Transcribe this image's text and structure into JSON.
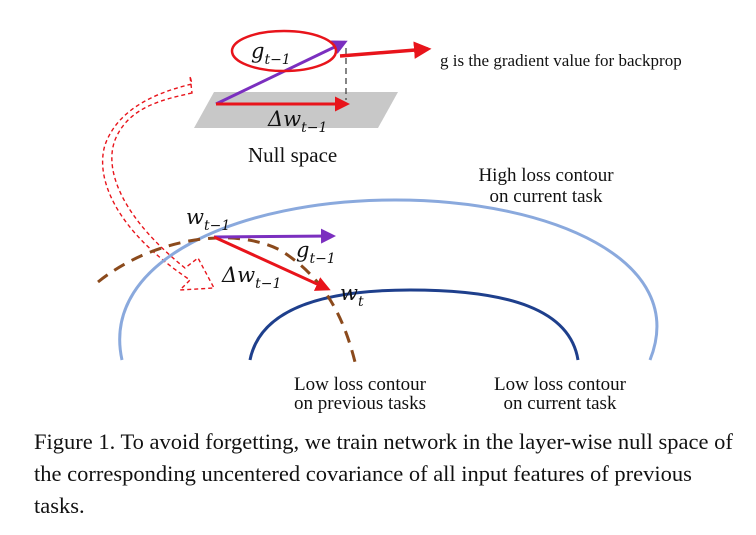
{
  "figure": {
    "top_labels": {
      "g_label": "g",
      "g_sub": "t−1",
      "dw_label": "Δw",
      "dw_sub": "t−1",
      "null_space": "Null space",
      "annotation": "g is the gradient value for backprop"
    },
    "bottom_labels": {
      "w_label": "w",
      "w_sub": "t−1",
      "g_label": "g",
      "g_sub": "t−1",
      "dw_label": "Δw",
      "dw_sub": "t−1",
      "wt_label": "w",
      "wt_sub": "t"
    },
    "contours": {
      "high_current_line1": "High loss contour",
      "high_current_line2": "on current task",
      "low_previous_line1": "Low loss contour",
      "low_previous_line2": "on previous tasks",
      "low_current_line1": "Low loss contour",
      "low_current_line2": "on current task"
    },
    "colors": {
      "gradient_arrow": "#7b2fbf",
      "update_arrow": "#e8141b",
      "annotation": "#e8141b",
      "high_contour": "#8aa9dd",
      "low_current_contour": "#1e3f8c",
      "previous_contour": "#8b4a1c",
      "null_plane": "#c8c8c8"
    }
  },
  "caption": "Figure 1. To avoid forgetting, we train network in the layer-wise null space of the corresponding uncentered covariance of all input features of previous tasks."
}
